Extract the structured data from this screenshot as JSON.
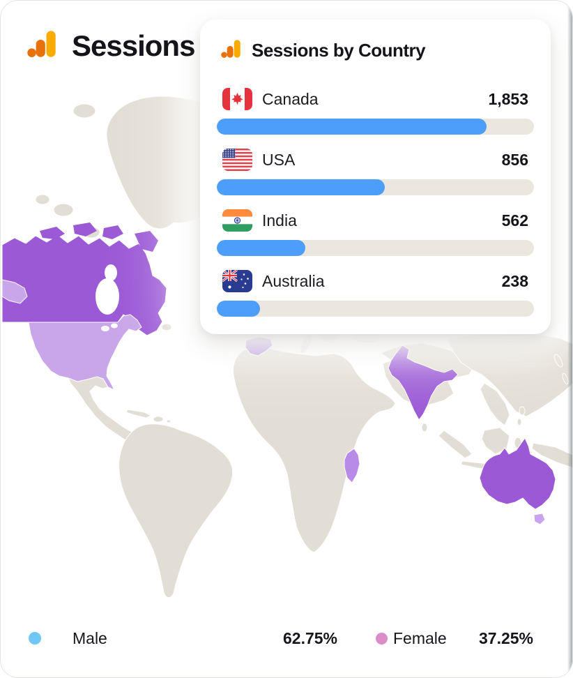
{
  "header": {
    "title": "Sessions"
  },
  "card": {
    "title": "Sessions by Country",
    "countries": [
      {
        "name": "Canada",
        "value": "1,853",
        "percent": 85,
        "flag": "canada"
      },
      {
        "name": "USA",
        "value": "856",
        "percent": 53,
        "flag": "usa"
      },
      {
        "name": "India",
        "value": "562",
        "percent": 28,
        "flag": "india"
      },
      {
        "name": "Australia",
        "value": "238",
        "percent": 13.6,
        "flag": "australia"
      }
    ]
  },
  "legend": {
    "male_label": "Male",
    "male_value": "62.75%",
    "male_color": "#6FC7F6",
    "female_label": "Female",
    "female_value": "37.25%",
    "female_color": "#DC8CC6"
  },
  "brand": {
    "bar_fill_color": "#4D9EFB",
    "bar_track_color": "#EBE7DF",
    "logo_orange": "#E8710A",
    "logo_amber": "#F9AB00"
  },
  "map": {
    "base_color": "#E3DED5",
    "highlight_color": "#9B59D6",
    "highlight_light_color": "#C9A6EA",
    "spain_color": "#A87CDC",
    "madagascar_color": "#B98BE8",
    "tasmania_color": "#C9A4EE",
    "highlighted_countries": [
      "Canada",
      "USA",
      "Spain",
      "India",
      "Madagascar",
      "Australia"
    ]
  },
  "chart_data": {
    "type": "bar",
    "orientation": "horizontal",
    "title": "Sessions by Country",
    "categories": [
      "Canada",
      "USA",
      "India",
      "Australia"
    ],
    "values": [
      1853,
      856,
      562,
      238
    ],
    "bar_fill_fractions": [
      0.85,
      0.53,
      0.28,
      0.136
    ],
    "legend": [
      {
        "label": "Male",
        "value": "62.75%"
      },
      {
        "label": "Female",
        "value": "37.25%"
      }
    ]
  }
}
